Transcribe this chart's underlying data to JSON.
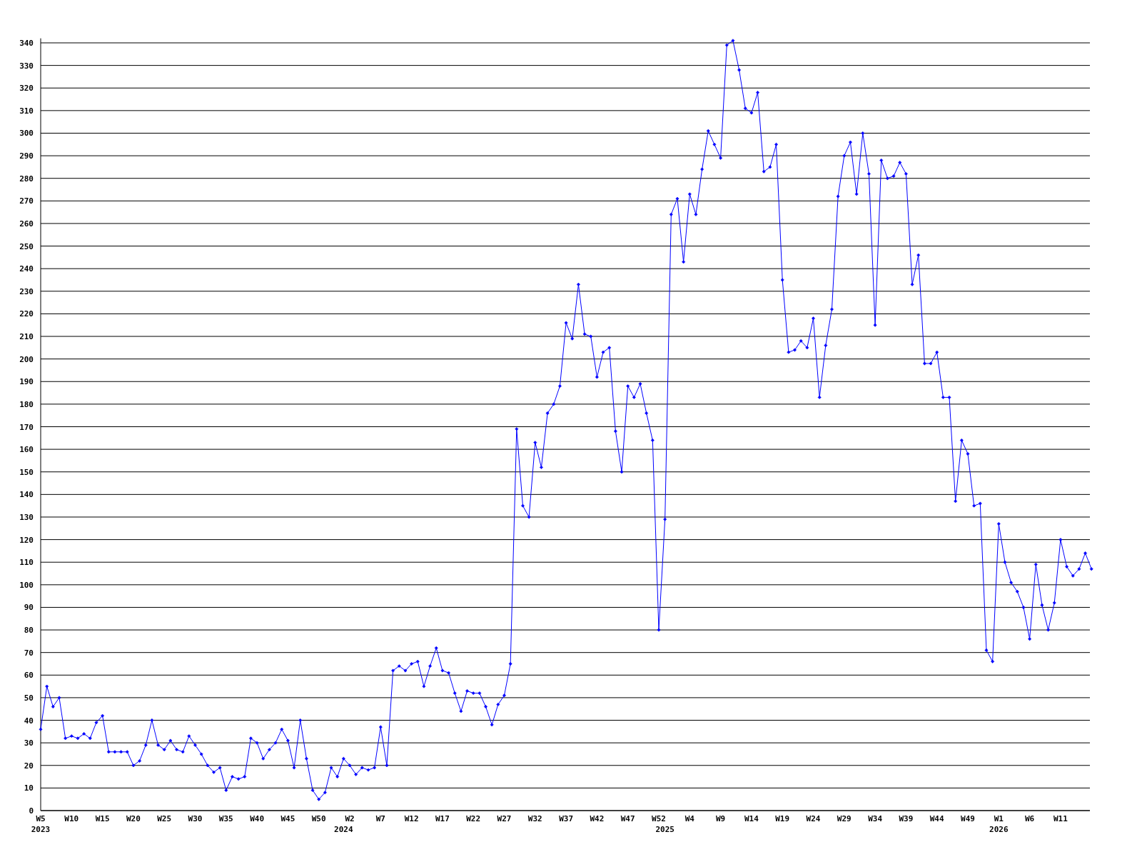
{
  "chart_data": {
    "type": "line",
    "categories": [
      "W5\n2023",
      null,
      null,
      null,
      null,
      "W10",
      null,
      null,
      null,
      null,
      "W15",
      null,
      null,
      null,
      null,
      "W20",
      null,
      null,
      null,
      null,
      "W25",
      null,
      null,
      null,
      null,
      "W30",
      null,
      null,
      null,
      null,
      "W35",
      null,
      null,
      null,
      null,
      "W40",
      null,
      null,
      null,
      null,
      "W45",
      null,
      null,
      null,
      null,
      "W50",
      null,
      null,
      null,
      "\n2024",
      "W2",
      null,
      null,
      null,
      null,
      "W7",
      null,
      null,
      null,
      null,
      "W12",
      null,
      null,
      null,
      null,
      "W17",
      null,
      null,
      null,
      null,
      "W22",
      null,
      null,
      null,
      null,
      "W27",
      null,
      null,
      null,
      null,
      "W32",
      null,
      null,
      null,
      null,
      "W37",
      null,
      null,
      null,
      null,
      "W42",
      null,
      null,
      null,
      null,
      "W47",
      null,
      null,
      null,
      null,
      "W52",
      "\n2025",
      null,
      null,
      null,
      "W4",
      null,
      null,
      null,
      null,
      "W9",
      null,
      null,
      null,
      null,
      "W14",
      null,
      null,
      null,
      null,
      "W19",
      null,
      null,
      null,
      null,
      "W24",
      null,
      null,
      null,
      null,
      "W29",
      null,
      null,
      null,
      null,
      "W34",
      null,
      null,
      null,
      null,
      "W39",
      null,
      null,
      null,
      null,
      "W44",
      null,
      null,
      null,
      null,
      "W49",
      null,
      null,
      null,
      null,
      "W1\n2026",
      null,
      null,
      null,
      null,
      "W6",
      null,
      null,
      null,
      null,
      "W11",
      null,
      null,
      null,
      null,
      null
    ],
    "series": [
      {
        "color": "#0000ff",
        "values": [
          36,
          55,
          46,
          50,
          32,
          33,
          32,
          34,
          32,
          39,
          42,
          26,
          26,
          26,
          26,
          20,
          22,
          29,
          40,
          29,
          27,
          31,
          27,
          26,
          33,
          29,
          25,
          20,
          17,
          19,
          9,
          15,
          14,
          15,
          32,
          30,
          23,
          27,
          30,
          36,
          31,
          19,
          40,
          23,
          9,
          5,
          8,
          19,
          15,
          23,
          20,
          16,
          19,
          18,
          19,
          37,
          20,
          62,
          64,
          62,
          65,
          66,
          55,
          64,
          72,
          62,
          61,
          52,
          44,
          53,
          52,
          52,
          46,
          38,
          47,
          51,
          65,
          169,
          135,
          130,
          163,
          152,
          176,
          180,
          188,
          216,
          209,
          233,
          211,
          210,
          192,
          203,
          205,
          168,
          150,
          188,
          183,
          189,
          176,
          164,
          80,
          129,
          264,
          271,
          243,
          273,
          264,
          284,
          301,
          295,
          289,
          339,
          341,
          328,
          311,
          309,
          318,
          283,
          285,
          295,
          235,
          203,
          204,
          208,
          205,
          218,
          183,
          206,
          222,
          272,
          290,
          296,
          273,
          300,
          282,
          215,
          288,
          280,
          281,
          287,
          282,
          233,
          246,
          198,
          198,
          203,
          183,
          183,
          137,
          164,
          158,
          135,
          136,
          71,
          66,
          127,
          110,
          101,
          97,
          90,
          76,
          109,
          91,
          80,
          92,
          120,
          108,
          104,
          107,
          114,
          107
        ]
      }
    ],
    "ylim": [
      0,
      342
    ],
    "yticks": [
      0,
      10,
      20,
      30,
      40,
      50,
      60,
      70,
      80,
      90,
      100,
      110,
      120,
      130,
      140,
      150,
      160,
      170,
      180,
      190,
      200,
      210,
      220,
      230,
      240,
      250,
      260,
      270,
      280,
      290,
      300,
      310,
      320,
      330,
      340
    ],
    "grid": "y",
    "marker": "diamond",
    "line_style": "solid"
  }
}
